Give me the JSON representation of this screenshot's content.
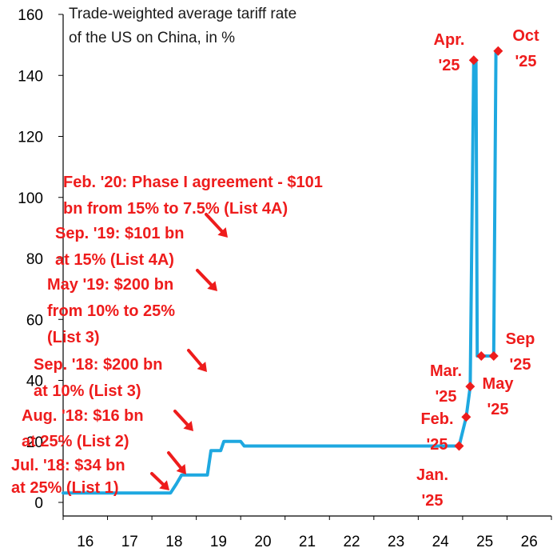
{
  "chart_data": {
    "type": "line",
    "title": [
      "Trade-weighted average tariff rate",
      "of the US on China, in %"
    ],
    "xlabel": "",
    "ylabel": "",
    "xlim": [
      16,
      27
    ],
    "ylim": [
      0,
      160
    ],
    "x_ticks": [
      16,
      17,
      18,
      19,
      20,
      21,
      22,
      23,
      24,
      25,
      26
    ],
    "y_ticks": [
      0,
      20,
      40,
      60,
      80,
      100,
      120,
      140,
      160
    ],
    "grid": false,
    "line_color": "#1ea8e0",
    "marker_color": "#ee1c1c",
    "annotation_color": "#ee1c1c",
    "series": [
      {
        "x": [
          16.0,
          18.42,
          18.55,
          18.67,
          19.25,
          19.33,
          19.55,
          19.62,
          20.0,
          20.08,
          24.92,
          25.08,
          25.17,
          25.25,
          25.3,
          25.33,
          25.42,
          25.5,
          25.7,
          25.75,
          25.8
        ],
        "y": [
          3.1,
          3.1,
          6,
          9,
          9,
          17,
          17,
          20,
          20,
          18.5,
          18.5,
          28,
          38,
          145,
          145,
          48,
          48,
          48,
          48,
          148,
          148
        ]
      }
    ],
    "markers": [
      {
        "x": 24.92,
        "y": 18.5
      },
      {
        "x": 25.08,
        "y": 28
      },
      {
        "x": 25.17,
        "y": 38
      },
      {
        "x": 25.25,
        "y": 145
      },
      {
        "x": 25.42,
        "y": 48
      },
      {
        "x": 25.7,
        "y": 48
      },
      {
        "x": 25.8,
        "y": 148
      }
    ],
    "point_labels": [
      {
        "lines": [
          "Jan.",
          "'25"
        ]
      },
      {
        "lines": [
          "Feb.",
          "'25"
        ]
      },
      {
        "lines": [
          "Mar.",
          "'25"
        ]
      },
      {
        "lines": [
          "Apr.",
          "'25"
        ]
      },
      {
        "lines": [
          "May",
          "'25"
        ]
      },
      {
        "lines": [
          "Sep",
          "'25"
        ]
      },
      {
        "lines": [
          "Oct",
          "'25"
        ]
      }
    ],
    "event_annotations": [
      {
        "lines": [
          "Jul. '18: $34 bn",
          "at 25% (List 1)"
        ]
      },
      {
        "lines": [
          "Aug. '18: $16 bn",
          "at 25% (List 2)"
        ]
      },
      {
        "lines": [
          "Sep. '18: $200 bn",
          "at 10% (List 3)"
        ]
      },
      {
        "lines": [
          "May '19: $200 bn",
          "from 10% to 25%",
          "(List 3)"
        ]
      },
      {
        "lines": [
          "Sep. '19: $101 bn",
          "at 15% (List 4A)"
        ]
      },
      {
        "lines": [
          "Feb. '20: Phase I agreement - $101",
          "bn from 15% to 7.5% (List 4A)"
        ]
      }
    ]
  }
}
